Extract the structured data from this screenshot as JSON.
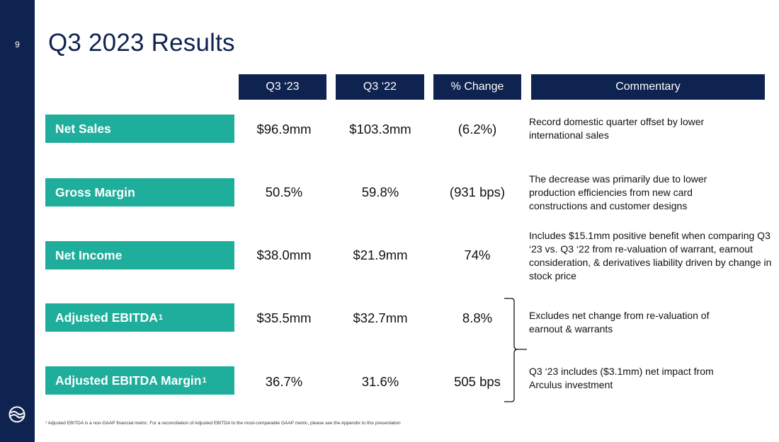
{
  "slide": {
    "page_number": "9",
    "title": "Q3 2023 Results",
    "footnote": "¹ Adjusted EBITDA is a non-GAAP financial metric. For a reconciliation of Adjusted EBITDA to the most-comparable GAAP metric, please see the Appendix to this presentation"
  },
  "table": {
    "headers": {
      "q3_23": "Q3 ‘23",
      "q3_22": "Q3 ‘22",
      "change": "% Change",
      "commentary": "Commentary"
    },
    "rows": [
      {
        "label": "Net Sales",
        "superscript": "",
        "q3_23": "$96.9mm",
        "q3_22": "$103.3mm",
        "change": "(6.2%)",
        "commentary": "Record domestic quarter offset by lower international sales"
      },
      {
        "label": "Gross Margin",
        "superscript": "",
        "q3_23": "50.5%",
        "q3_22": "59.8%",
        "change": "(931 bps)",
        "commentary": "The decrease was primarily due to lower production efficiencies from new card constructions and customer designs"
      },
      {
        "label": "Net Income",
        "superscript": "",
        "q3_23": "$38.0mm",
        "q3_22": "$21.9mm",
        "change": "74%",
        "commentary": "Includes $15.1mm positive benefit when comparing Q3 ‘23 vs. Q3 ‘22 from re-valuation of warrant, earnout consideration, & derivatives liability driven by change in stock price"
      },
      {
        "label": "Adjusted EBITDA",
        "superscript": "1",
        "q3_23": "$35.5mm",
        "q3_22": "$32.7mm",
        "change": "8.8%",
        "commentary": "Excludes net change from re-valuation of earnout & warrants"
      },
      {
        "label": "Adjusted EBITDA Margin",
        "superscript": "1",
        "q3_23": "36.7%",
        "q3_22": "31.6%",
        "change": "505 bps",
        "commentary": "Q3 ‘23 includes ($3.1mm) net impact from Arculus investment"
      }
    ]
  },
  "colors": {
    "navy": "#0f2350",
    "teal": "#1fae9b"
  },
  "icons": {
    "logo": "company-logo-icon",
    "brace": "right-brace-icon"
  }
}
